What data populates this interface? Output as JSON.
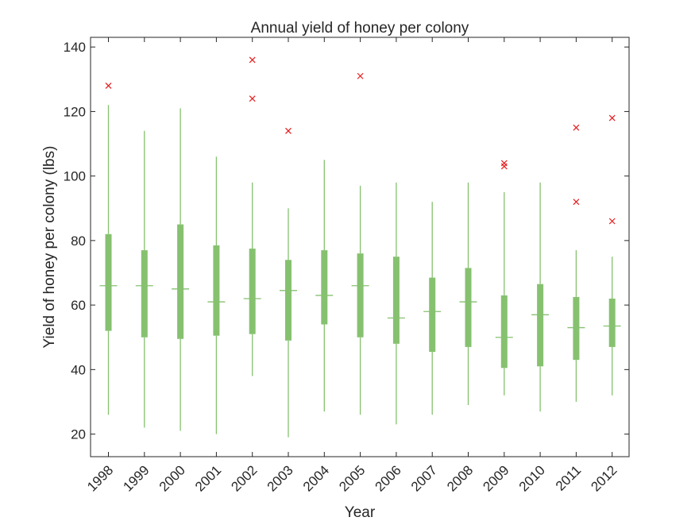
{
  "chart_data": {
    "type": "box",
    "title": "Annual yield of honey per colony",
    "xlabel": "Year",
    "ylabel": "Yield of honey per colony (lbs)",
    "ylim": [
      13,
      143
    ],
    "yticks": [
      20,
      40,
      60,
      80,
      100,
      120,
      140
    ],
    "grid": false,
    "categories": [
      "1998",
      "1999",
      "2000",
      "2001",
      "2002",
      "2003",
      "2004",
      "2005",
      "2006",
      "2007",
      "2008",
      "2009",
      "2010",
      "2011",
      "2012"
    ],
    "boxes": [
      {
        "year": "1998",
        "whisker_low": 26,
        "q1": 52,
        "median": 66,
        "q3": 82,
        "whisker_high": 122,
        "outliers": [
          128
        ]
      },
      {
        "year": "1999",
        "whisker_low": 22,
        "q1": 50,
        "median": 66,
        "q3": 77,
        "whisker_high": 114,
        "outliers": []
      },
      {
        "year": "2000",
        "whisker_low": 21,
        "q1": 49.5,
        "median": 65,
        "q3": 85,
        "whisker_high": 121,
        "outliers": []
      },
      {
        "year": "2001",
        "whisker_low": 20,
        "q1": 50.5,
        "median": 61,
        "q3": 78.5,
        "whisker_high": 106,
        "outliers": []
      },
      {
        "year": "2002",
        "whisker_low": 38,
        "q1": 51,
        "median": 62,
        "q3": 77.5,
        "whisker_high": 98,
        "outliers": [
          124,
          136
        ]
      },
      {
        "year": "2003",
        "whisker_low": 19,
        "q1": 49,
        "median": 64.5,
        "q3": 74,
        "whisker_high": 90,
        "outliers": [
          114
        ]
      },
      {
        "year": "2004",
        "whisker_low": 27,
        "q1": 54,
        "median": 63,
        "q3": 77,
        "whisker_high": 105,
        "outliers": []
      },
      {
        "year": "2005",
        "whisker_low": 26,
        "q1": 50,
        "median": 66,
        "q3": 76,
        "whisker_high": 97,
        "outliers": [
          131
        ]
      },
      {
        "year": "2006",
        "whisker_low": 23,
        "q1": 48,
        "median": 56,
        "q3": 75,
        "whisker_high": 98,
        "outliers": []
      },
      {
        "year": "2007",
        "whisker_low": 26,
        "q1": 45.5,
        "median": 58,
        "q3": 68.5,
        "whisker_high": 92,
        "outliers": []
      },
      {
        "year": "2008",
        "whisker_low": 29,
        "q1": 47,
        "median": 61,
        "q3": 71.5,
        "whisker_high": 98,
        "outliers": []
      },
      {
        "year": "2009",
        "whisker_low": 32,
        "q1": 40.5,
        "median": 50,
        "q3": 63,
        "whisker_high": 95,
        "outliers": [
          103,
          104
        ]
      },
      {
        "year": "2010",
        "whisker_low": 27,
        "q1": 41,
        "median": 57,
        "q3": 66.5,
        "whisker_high": 98,
        "outliers": []
      },
      {
        "year": "2011",
        "whisker_low": 30,
        "q1": 43,
        "median": 53,
        "q3": 62.5,
        "whisker_high": 77,
        "outliers": [
          92,
          115
        ]
      },
      {
        "year": "2012",
        "whisker_low": 32,
        "q1": 47,
        "median": 53.5,
        "q3": 62,
        "whisker_high": 75,
        "outliers": [
          86,
          118
        ]
      }
    ],
    "colors": {
      "box": "#86c16f",
      "whisker": "#86c16f",
      "outlier": "#e41a1c",
      "axis": "#262626"
    }
  }
}
